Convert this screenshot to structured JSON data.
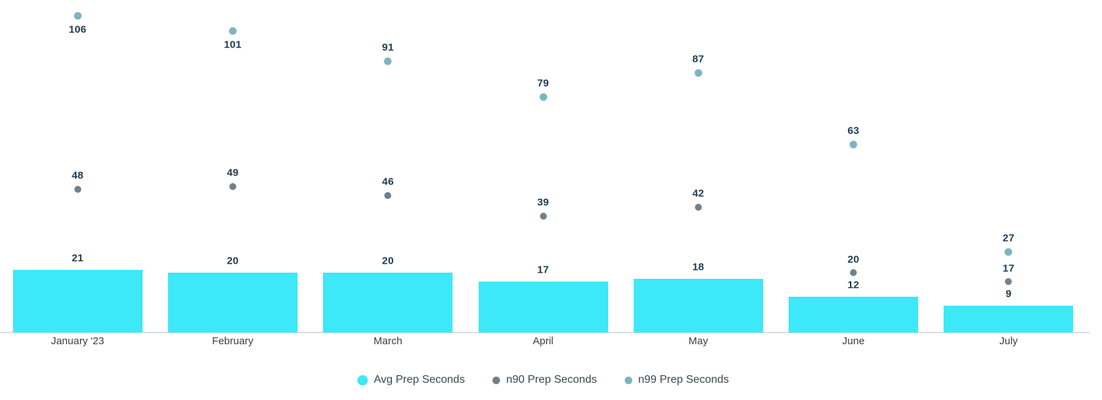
{
  "chart_data": {
    "type": "bar",
    "subtype": "column chart with point (scatter) series, every value annotated",
    "categories": [
      "January '23",
      "February",
      "March",
      "April",
      "May",
      "June",
      "July"
    ],
    "series": [
      {
        "name": "Avg Prep Seconds",
        "render": "column",
        "color": "#3de8f8",
        "values": [
          21,
          20,
          20,
          17,
          18,
          12,
          9
        ]
      },
      {
        "name": "n90 Prep Seconds",
        "render": "point",
        "color": "#73808c",
        "values": [
          48,
          49,
          46,
          39,
          42,
          20,
          17
        ]
      },
      {
        "name": "n99 Prep Seconds",
        "render": "point",
        "color": "#7cb5bd",
        "values": [
          106,
          101,
          91,
          79,
          87,
          63,
          27
        ]
      }
    ],
    "ylim": [
      0,
      112
    ],
    "grid": false,
    "y_axis_ticks_visible": false,
    "legend_position": "bottom-center",
    "annotations": "each bar top and each point is labeled with its numeric value"
  },
  "colors": {
    "background": "#ffffff",
    "axis_line": "#dadce0",
    "annotation_text": "#1f3c51",
    "axis_label_text": "#3c4043",
    "legend_text": "#3a464f"
  }
}
